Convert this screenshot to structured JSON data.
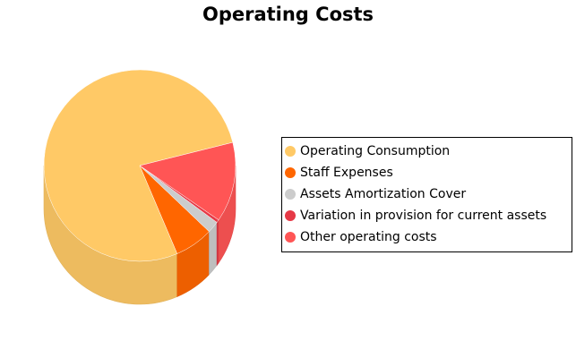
{
  "chart_data": {
    "type": "pie",
    "title": "Operating Costs",
    "legend_position": "right",
    "style": "3d",
    "categories": [
      "Operating Consumption",
      "Staff Expenses",
      "Assets Amortization Cover",
      "Variation in provision for current assets",
      "Other operating costs"
    ],
    "values": [
      77.5,
      6.5,
      2.0,
      0.5,
      13.5
    ],
    "unit": "percent",
    "colors": [
      "#FFC966",
      "#FF6600",
      "#CCCCCC",
      "#E63946",
      "#FF5555"
    ]
  }
}
